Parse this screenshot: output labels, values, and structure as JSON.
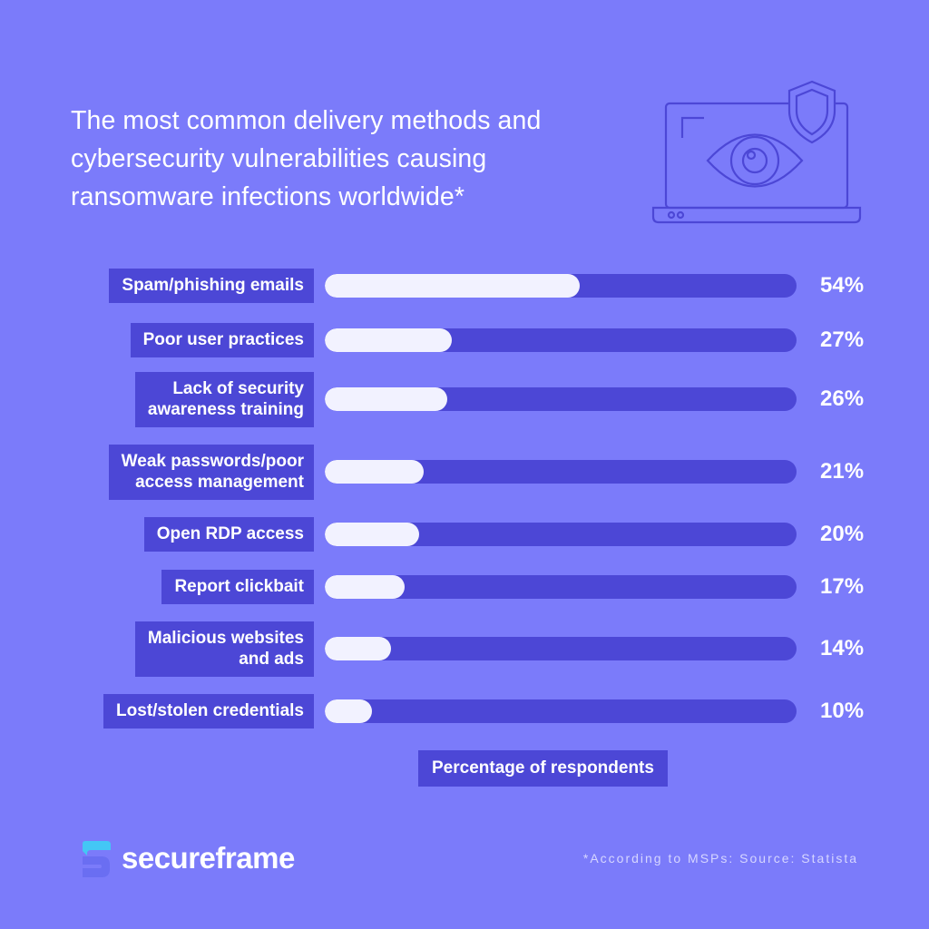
{
  "title_lines": [
    "The most common delivery methods and",
    "cybersecurity vulnerabilities causing",
    "ransomware infections worldwide*"
  ],
  "chart_data": {
    "type": "bar",
    "orientation": "horizontal",
    "categories": [
      [
        "Spam/phishing emails"
      ],
      [
        "Poor user practices"
      ],
      [
        "Lack of security",
        "awareness training"
      ],
      [
        "Weak passwords/poor",
        "access management"
      ],
      [
        "Open RDP access"
      ],
      [
        "Report clickbait"
      ],
      [
        "Malicious websites",
        "and ads"
      ],
      [
        "Lost/stolen credentials"
      ]
    ],
    "values": [
      54,
      27,
      26,
      21,
      20,
      17,
      14,
      10
    ],
    "value_labels": [
      "54%",
      "27%",
      "26%",
      "21%",
      "20%",
      "17%",
      "14%",
      "10%"
    ],
    "xlim": [
      0,
      100
    ],
    "xlabel": "Percentage of respondents",
    "grid": false
  },
  "footnote": "*According to MSPs: Source: Statista",
  "brand": {
    "name": "secureframe"
  },
  "icons": [
    "laptop-eye-shield-icon",
    "secureframe-logo-icon"
  ],
  "colors": {
    "background": "#7b7bfa",
    "bar_track": "#4c47d6",
    "bar_fill": "#f2f2ff",
    "label_background": "#4c47d6",
    "text": "#ffffff"
  }
}
